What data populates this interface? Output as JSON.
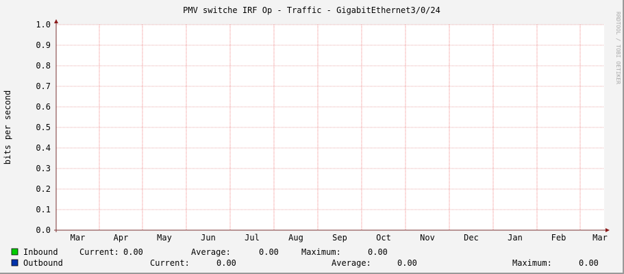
{
  "chart_data": {
    "type": "line",
    "title": "PMV switche IRF Op - Traffic - GigabitEthernet3/0/24",
    "ylabel": "bits per second",
    "xlabel": "",
    "ylim": [
      0,
      1.0
    ],
    "y_ticks": [
      "0.0",
      "0.1",
      "0.2",
      "0.3",
      "0.4",
      "0.5",
      "0.6",
      "0.7",
      "0.8",
      "0.9",
      "1.0"
    ],
    "x_ticks": [
      "Mar",
      "Apr",
      "May",
      "Jun",
      "Jul",
      "Aug",
      "Sep",
      "Oct",
      "Nov",
      "Dec",
      "Jan",
      "Feb",
      "Mar"
    ],
    "grid": true,
    "watermark": "RRDTOOL / TOBI OETIKER",
    "series": [
      {
        "name": "Inbound",
        "color": "#00cc00",
        "values": []
      },
      {
        "name": "Outbound",
        "color": "#0033aa",
        "values": []
      }
    ]
  },
  "legend": [
    {
      "name": "Inbound",
      "color": "#00cc00",
      "current_label": "Current:",
      "current": "0.00",
      "average_label": "Average:",
      "average": "0.00",
      "maximum_label": "Maximum:",
      "maximum": "0.00"
    },
    {
      "name": "Outbound",
      "color": "#0033aa",
      "current_label": "Current:",
      "current": "0.00",
      "average_label": "Average:",
      "average": "0.00",
      "maximum_label": "Maximum:",
      "maximum": "0.00"
    }
  ]
}
